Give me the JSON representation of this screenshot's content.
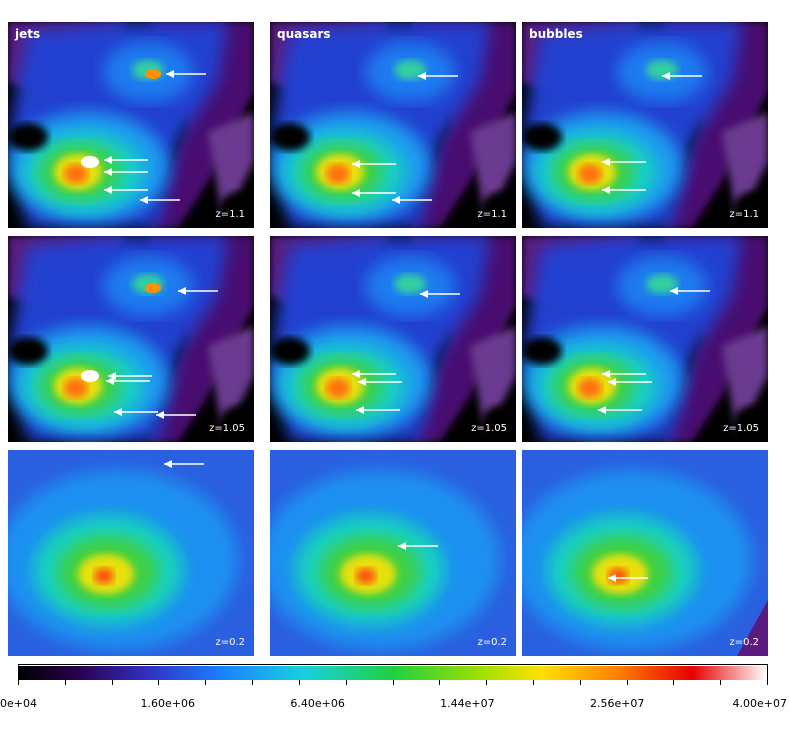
{
  "columns": [
    {
      "label": "jets"
    },
    {
      "label": "quasars"
    },
    {
      "label": "bubbles"
    }
  ],
  "rows": [
    {
      "redshift": "z=1.1"
    },
    {
      "redshift": "z=1.05"
    },
    {
      "redshift": "z=0.2"
    }
  ],
  "colorbar": {
    "tick_labels": [
      "0e+04",
      "1.60e+06",
      "6.40e+06",
      "1.44e+07",
      "2.56e+07",
      "4.00e+07"
    ],
    "colors": [
      "#000000",
      "#3a0070",
      "#2222dd",
      "#1aa0ff",
      "#18e0d0",
      "#20d030",
      "#a0e000",
      "#ffe000",
      "#ff7000",
      "#ee0000",
      "#ffffff"
    ]
  },
  "arrow_color": "#ffffff"
}
